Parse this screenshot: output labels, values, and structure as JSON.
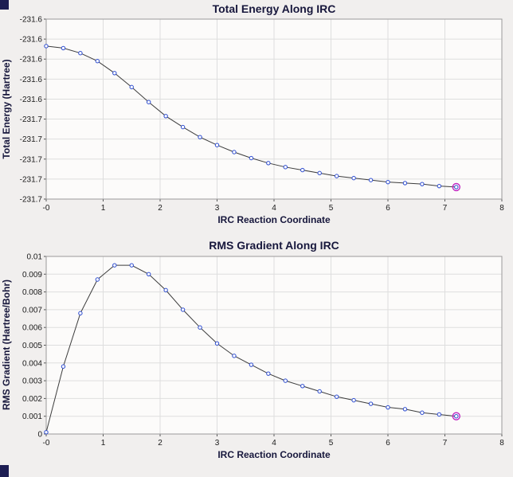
{
  "window": {
    "background": "#f1efee",
    "corner_color": "#1d1d52"
  },
  "chart_data": [
    {
      "type": "line",
      "title": "Total Energy Along IRC",
      "xlabel": "IRC Reaction Coordinate",
      "ylabel": "Total Energy (Hartree)",
      "xlim": [
        0,
        8
      ],
      "ylim": [
        -231.74,
        -231.56
      ],
      "grid": true,
      "legend": "none",
      "x": [
        0.0,
        0.3,
        0.6,
        0.9,
        1.2,
        1.5,
        1.8,
        2.1,
        2.4,
        2.7,
        3.0,
        3.3,
        3.6,
        3.9,
        4.2,
        4.5,
        4.8,
        5.1,
        5.4,
        5.7,
        6.0,
        6.3,
        6.6,
        6.9,
        7.2
      ],
      "y": [
        -231.587,
        -231.589,
        -231.594,
        -231.602,
        -231.614,
        -231.628,
        -231.643,
        -231.657,
        -231.668,
        -231.678,
        -231.686,
        -231.693,
        -231.699,
        -231.704,
        -231.708,
        -231.711,
        -231.714,
        -231.717,
        -231.719,
        -231.721,
        -231.723,
        -231.724,
        -231.725,
        -231.727,
        -231.728
      ],
      "xticks": {
        "values": [
          0,
          1,
          2,
          3,
          4,
          5,
          6,
          7,
          8
        ],
        "labels": [
          "-0",
          "1",
          "2",
          "3",
          "4",
          "5",
          "6",
          "7",
          "8"
        ]
      },
      "yticks": {
        "values": [
          -231.56,
          -231.58,
          -231.6,
          -231.62,
          -231.64,
          -231.66,
          -231.68,
          -231.7,
          -231.72,
          -231.74
        ],
        "labels": [
          "-231.6",
          "-231.6",
          "-231.6",
          "-231.6",
          "-231.6",
          "-231.7",
          "-231.7",
          "-231.7",
          "-231.7",
          "-231.7"
        ]
      },
      "plot_bg": "#fcfbfa",
      "frame_color": "#9a9a9a",
      "grid_color": "#dedede",
      "line_color": "#3c3c3c",
      "marker_color": "#2c4bd0",
      "highlight_last_color": "#c020c0"
    },
    {
      "type": "line",
      "title": "RMS Gradient Along IRC",
      "xlabel": "IRC Reaction Coordinate",
      "ylabel": "RMS Gradient (Hartree/Bohr)",
      "xlim": [
        0,
        8
      ],
      "ylim": [
        0,
        0.01
      ],
      "grid": true,
      "legend": "none",
      "x": [
        0.0,
        0.3,
        0.6,
        0.9,
        1.2,
        1.5,
        1.8,
        2.1,
        2.4,
        2.7,
        3.0,
        3.3,
        3.6,
        3.9,
        4.2,
        4.5,
        4.8,
        5.1,
        5.4,
        5.7,
        6.0,
        6.3,
        6.6,
        6.9,
        7.2
      ],
      "y": [
        0.0001,
        0.0038,
        0.0068,
        0.0087,
        0.0095,
        0.0095,
        0.009,
        0.0081,
        0.007,
        0.006,
        0.0051,
        0.0044,
        0.0039,
        0.0034,
        0.003,
        0.0027,
        0.0024,
        0.0021,
        0.0019,
        0.0017,
        0.0015,
        0.0014,
        0.0012,
        0.0011,
        0.001
      ],
      "xticks": {
        "values": [
          0,
          1,
          2,
          3,
          4,
          5,
          6,
          7,
          8
        ],
        "labels": [
          "-0",
          "1",
          "2",
          "3",
          "4",
          "5",
          "6",
          "7",
          "8"
        ]
      },
      "yticks": {
        "values": [
          0,
          0.001,
          0.002,
          0.003,
          0.004,
          0.005,
          0.006,
          0.007,
          0.008,
          0.009,
          0.01
        ],
        "labels": [
          "0",
          "0.001",
          "0.002",
          "0.003",
          "0.004",
          "0.005",
          "0.006",
          "0.007",
          "0.008",
          "0.009",
          "0.01"
        ]
      },
      "plot_bg": "#fcfbfa",
      "frame_color": "#9a9a9a",
      "grid_color": "#dedede",
      "line_color": "#3c3c3c",
      "marker_color": "#2c4bd0",
      "highlight_last_color": "#c020c0"
    }
  ]
}
